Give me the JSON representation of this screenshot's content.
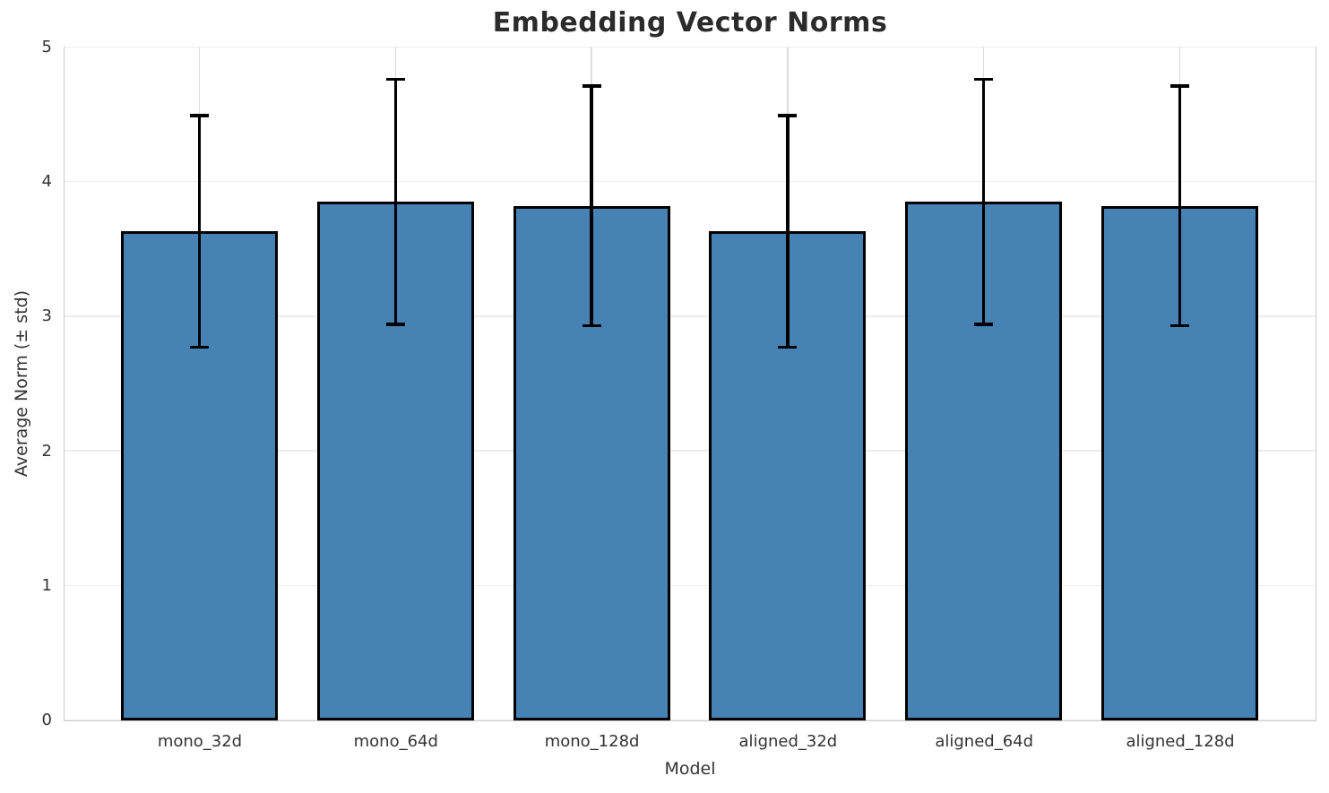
{
  "chart_data": {
    "type": "bar",
    "title": "Embedding Vector Norms",
    "xlabel": "Model",
    "ylabel": "Average Norm (± std)",
    "categories": [
      "mono_32d",
      "mono_64d",
      "mono_128d",
      "aligned_32d",
      "aligned_64d",
      "aligned_128d"
    ],
    "values": [
      3.63,
      3.85,
      3.82,
      3.63,
      3.85,
      3.82
    ],
    "errors": [
      0.86,
      0.91,
      0.89,
      0.86,
      0.91,
      0.89
    ],
    "ylim": [
      0,
      5
    ],
    "yticks": [
      0,
      1,
      2,
      3,
      4,
      5
    ],
    "grid": true,
    "legend": "none",
    "bar_color": "#4682b4",
    "bar_edge_color": "#000000",
    "error_color": "#000000"
  }
}
